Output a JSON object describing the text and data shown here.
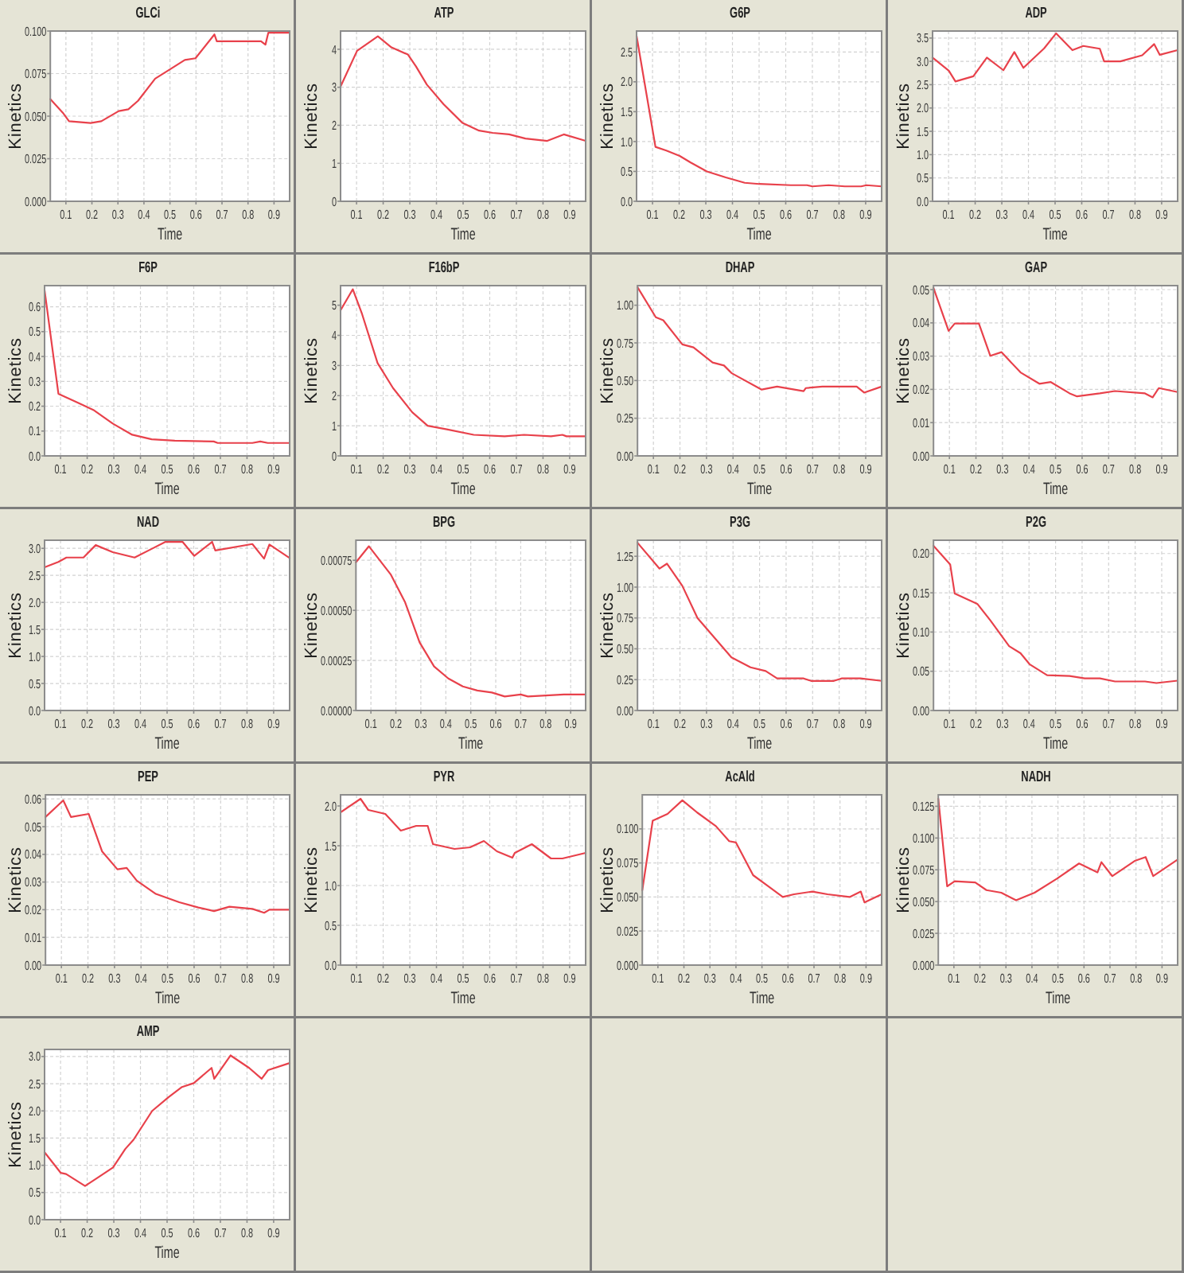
{
  "chart_data": [
    {
      "type": "line",
      "title": "GLCi",
      "xlabel": "Time",
      "ylabel": "Kinetics",
      "x": [
        0.04,
        0.088,
        0.112,
        0.195,
        0.236,
        0.303,
        0.34,
        0.377,
        0.443,
        0.505,
        0.557,
        0.598,
        0.671,
        0.68,
        0.733,
        0.85,
        0.867,
        0.878,
        0.96
      ],
      "series": [
        {
          "color": "#e8414b",
          "values": [
            0.06,
            0.052,
            0.047,
            0.046,
            0.047,
            0.053,
            0.054,
            0.059,
            0.072,
            0.078,
            0.083,
            0.084,
            0.098,
            0.094,
            0.094,
            0.094,
            0.092,
            0.099,
            0.099
          ]
        }
      ],
      "xlim": [
        0.04,
        0.96
      ],
      "xticks": [
        0.1,
        0.2,
        0.3,
        0.4,
        0.5,
        0.6,
        0.7,
        0.8,
        0.9
      ],
      "ylim": [
        0,
        0.1
      ],
      "yticks": [
        {
          "value": 0,
          "label": "0.000"
        },
        0.025,
        {
          "value": 0.05,
          "label": "0.050"
        },
        0.075,
        {
          "value": 0.1,
          "label": "0.100"
        }
      ],
      "grid": true
    },
    {
      "type": "line",
      "title": "ATP",
      "xlabel": "Time",
      "ylabel": "Kinetics",
      "x": [
        0.04,
        0.102,
        0.18,
        0.231,
        0.293,
        0.323,
        0.364,
        0.426,
        0.498,
        0.56,
        0.611,
        0.673,
        0.734,
        0.816,
        0.878,
        0.96
      ],
      "series": [
        {
          "color": "#e8414b",
          "values": [
            3.02,
            3.96,
            4.34,
            4.05,
            3.86,
            3.55,
            3.07,
            2.56,
            2.06,
            1.86,
            1.8,
            1.76,
            1.65,
            1.59,
            1.76,
            1.59
          ]
        }
      ],
      "xlim": [
        0.04,
        0.96
      ],
      "xticks": [
        0.1,
        0.2,
        0.3,
        0.4,
        0.5,
        0.6,
        0.7,
        0.8,
        0.9
      ],
      "ylim": [
        0,
        4.48
      ],
      "yticks": [
        0,
        1,
        2,
        3,
        4
      ],
      "grid": true
    },
    {
      "type": "line",
      "title": "G6P",
      "xlabel": "Time",
      "ylabel": "Kinetics",
      "x": [
        0.04,
        0.111,
        0.152,
        0.202,
        0.243,
        0.304,
        0.375,
        0.446,
        0.5,
        0.619,
        0.68,
        0.7,
        0.761,
        0.822,
        0.883,
        0.903,
        0.96
      ],
      "series": [
        {
          "color": "#e8414b",
          "values": [
            2.77,
            0.91,
            0.85,
            0.76,
            0.65,
            0.5,
            0.4,
            0.31,
            0.29,
            0.27,
            0.27,
            0.25,
            0.27,
            0.25,
            0.25,
            0.27,
            0.25
          ]
        }
      ],
      "xlim": [
        0.04,
        0.96
      ],
      "xticks": [
        0.1,
        0.2,
        0.3,
        0.4,
        0.5,
        0.6,
        0.7,
        0.8,
        0.9
      ],
      "ylim": [
        0,
        2.85
      ],
      "yticks": [
        {
          "value": 0,
          "label": "0.0"
        },
        0.5,
        {
          "value": 1,
          "label": "1.0"
        },
        1.5,
        {
          "value": 2,
          "label": "2.0"
        },
        2.5
      ],
      "grid": true
    },
    {
      "type": "line",
      "title": "ADP",
      "xlabel": "Time",
      "ylabel": "Kinetics",
      "x": [
        0.04,
        0.101,
        0.126,
        0.193,
        0.244,
        0.306,
        0.347,
        0.381,
        0.459,
        0.504,
        0.565,
        0.606,
        0.668,
        0.684,
        0.745,
        0.827,
        0.872,
        0.893,
        0.96
      ],
      "series": [
        {
          "color": "#e8414b",
          "values": [
            3.08,
            2.8,
            2.57,
            2.68,
            3.08,
            2.81,
            3.2,
            2.86,
            3.28,
            3.6,
            3.24,
            3.33,
            3.27,
            3.0,
            3.0,
            3.13,
            3.37,
            3.14,
            3.24
          ]
        }
      ],
      "xlim": [
        0.04,
        0.96
      ],
      "xticks": [
        0.1,
        0.2,
        0.3,
        0.4,
        0.5,
        0.6,
        0.7,
        0.8,
        0.9
      ],
      "ylim": [
        0,
        3.65
      ],
      "yticks": [
        {
          "value": 0,
          "label": "0.0"
        },
        0.5,
        {
          "value": 1,
          "label": "1.0"
        },
        1.5,
        {
          "value": 2,
          "label": "2.0"
        },
        2.5,
        {
          "value": 3,
          "label": "3.0"
        },
        3.5
      ],
      "grid": true
    },
    {
      "type": "line",
      "title": "F6P",
      "xlabel": "Time",
      "ylabel": "Kinetics",
      "x": [
        0.04,
        0.092,
        0.151,
        0.223,
        0.296,
        0.369,
        0.442,
        0.529,
        0.675,
        0.69,
        0.82,
        0.85,
        0.878,
        0.96
      ],
      "series": [
        {
          "color": "#e8414b",
          "values": [
            0.667,
            0.25,
            0.221,
            0.185,
            0.13,
            0.085,
            0.067,
            0.061,
            0.058,
            0.052,
            0.052,
            0.058,
            0.052,
            0.052
          ]
        }
      ],
      "xlim": [
        0.04,
        0.96
      ],
      "xticks": [
        0.1,
        0.2,
        0.3,
        0.4,
        0.5,
        0.6,
        0.7,
        0.8,
        0.9
      ],
      "ylim": [
        0,
        0.685
      ],
      "yticks": [
        {
          "value": 0,
          "label": "0.0"
        },
        0.1,
        0.2,
        0.3,
        0.4,
        0.5,
        0.6
      ],
      "grid": true
    },
    {
      "type": "line",
      "title": "F16bP",
      "xlabel": "Time",
      "ylabel": "Kinetics",
      "x": [
        0.04,
        0.086,
        0.121,
        0.179,
        0.237,
        0.309,
        0.367,
        0.439,
        0.54,
        0.656,
        0.729,
        0.83,
        0.873,
        0.888,
        0.96
      ],
      "series": [
        {
          "color": "#e8414b",
          "values": [
            4.83,
            5.53,
            4.7,
            3.08,
            2.25,
            1.45,
            1.0,
            0.88,
            0.7,
            0.65,
            0.7,
            0.65,
            0.7,
            0.65,
            0.65
          ]
        }
      ],
      "xlim": [
        0.04,
        0.96
      ],
      "xticks": [
        0.1,
        0.2,
        0.3,
        0.4,
        0.5,
        0.6,
        0.7,
        0.8,
        0.9
      ],
      "ylim": [
        0,
        5.65
      ],
      "yticks": [
        0,
        1,
        2,
        3,
        4,
        5
      ],
      "grid": true
    },
    {
      "type": "line",
      "title": "DHAP",
      "xlabel": "Time",
      "ylabel": "Kinetics",
      "x": [
        0.04,
        0.109,
        0.137,
        0.209,
        0.251,
        0.323,
        0.366,
        0.394,
        0.508,
        0.566,
        0.666,
        0.674,
        0.737,
        0.866,
        0.894,
        0.96
      ],
      "series": [
        {
          "color": "#e8414b",
          "values": [
            1.12,
            0.92,
            0.9,
            0.74,
            0.72,
            0.62,
            0.6,
            0.55,
            0.44,
            0.46,
            0.43,
            0.45,
            0.46,
            0.46,
            0.42,
            0.46
          ]
        }
      ],
      "xlim": [
        0.04,
        0.96
      ],
      "xticks": [
        0.1,
        0.2,
        0.3,
        0.4,
        0.5,
        0.6,
        0.7,
        0.8,
        0.9
      ],
      "ylim": [
        0,
        1.13
      ],
      "yticks": [
        {
          "value": 0,
          "label": "0.00"
        },
        0.25,
        {
          "value": 0.5,
          "label": "0.50"
        },
        0.75,
        {
          "value": 1,
          "label": "1.00"
        }
      ],
      "grid": true
    },
    {
      "type": "line",
      "title": "GAP",
      "xlabel": "Time",
      "ylabel": "Kinetics",
      "x": [
        0.04,
        0.097,
        0.12,
        0.211,
        0.254,
        0.296,
        0.368,
        0.439,
        0.482,
        0.553,
        0.581,
        0.667,
        0.724,
        0.837,
        0.866,
        0.889,
        0.96
      ],
      "series": [
        {
          "color": "#e8414b",
          "values": [
            0.0505,
            0.0376,
            0.0398,
            0.0398,
            0.0301,
            0.0312,
            0.0251,
            0.0217,
            0.0222,
            0.0188,
            0.0179,
            0.0188,
            0.0195,
            0.0188,
            0.0176,
            0.0204,
            0.0192
          ]
        }
      ],
      "xlim": [
        0.04,
        0.96
      ],
      "xticks": [
        0.1,
        0.2,
        0.3,
        0.4,
        0.5,
        0.6,
        0.7,
        0.8,
        0.9
      ],
      "ylim": [
        0,
        0.0512
      ],
      "yticks": [
        {
          "value": 0,
          "label": "0.00"
        },
        0.01,
        0.02,
        0.03,
        0.04,
        0.05
      ],
      "grid": true
    },
    {
      "type": "line",
      "title": "NAD",
      "xlabel": "Time",
      "ylabel": "Kinetics",
      "x": [
        0.04,
        0.092,
        0.122,
        0.186,
        0.232,
        0.296,
        0.378,
        0.442,
        0.494,
        0.558,
        0.602,
        0.669,
        0.681,
        0.82,
        0.864,
        0.884,
        0.96
      ],
      "series": [
        {
          "color": "#e8414b",
          "values": [
            2.65,
            2.75,
            2.83,
            2.83,
            3.06,
            2.93,
            2.83,
            2.99,
            3.12,
            3.12,
            2.86,
            3.12,
            2.96,
            3.08,
            2.81,
            3.07,
            2.82
          ]
        }
      ],
      "xlim": [
        0.04,
        0.96
      ],
      "xticks": [
        0.1,
        0.2,
        0.3,
        0.4,
        0.5,
        0.6,
        0.7,
        0.8,
        0.9
      ],
      "ylim": [
        0,
        3.15
      ],
      "yticks": [
        {
          "value": 0,
          "label": "0.0"
        },
        0.5,
        {
          "value": 1,
          "label": "1.0"
        },
        1.5,
        {
          "value": 2,
          "label": "2.0"
        },
        2.5,
        {
          "value": 3,
          "label": "3.0"
        }
      ],
      "grid": true
    },
    {
      "type": "line",
      "title": "BPG",
      "xlabel": "Time",
      "ylabel": "Kinetics",
      "x": [
        0.04,
        0.092,
        0.179,
        0.237,
        0.295,
        0.353,
        0.41,
        0.468,
        0.526,
        0.584,
        0.636,
        0.7,
        0.729,
        0.873,
        0.96
      ],
      "series": [
        {
          "color": "#e8414b",
          "values": [
            0.00074,
            0.00082,
            0.00068,
            0.00054,
            0.00034,
            0.00022,
            0.00016,
            0.00012,
            0.0001,
            9e-05,
            7e-05,
            8e-05,
            7e-05,
            8e-05,
            8e-05
          ]
        }
      ],
      "xlim": [
        0.04,
        0.96
      ],
      "xticks": [
        0.1,
        0.2,
        0.3,
        0.4,
        0.5,
        0.6,
        0.7,
        0.8,
        0.9
      ],
      "ylim": [
        0,
        0.00085
      ],
      "yticks": [
        {
          "value": 0,
          "label": "0.00000"
        },
        0.00025,
        {
          "value": 0.0005,
          "label": "0.00050"
        },
        0.00075
      ],
      "grid": true
    },
    {
      "type": "line",
      "title": "P3G",
      "xlabel": "Time",
      "ylabel": "Kinetics",
      "x": [
        0.04,
        0.123,
        0.151,
        0.209,
        0.266,
        0.394,
        0.466,
        0.523,
        0.566,
        0.666,
        0.694,
        0.78,
        0.809,
        0.88,
        0.96
      ],
      "series": [
        {
          "color": "#e8414b",
          "values": [
            1.36,
            1.15,
            1.19,
            1.01,
            0.75,
            0.43,
            0.35,
            0.32,
            0.26,
            0.26,
            0.24,
            0.24,
            0.26,
            0.26,
            0.24
          ]
        }
      ],
      "xlim": [
        0.04,
        0.96
      ],
      "xticks": [
        0.1,
        0.2,
        0.3,
        0.4,
        0.5,
        0.6,
        0.7,
        0.8,
        0.9
      ],
      "ylim": [
        0,
        1.38
      ],
      "yticks": [
        {
          "value": 0,
          "label": "0.00"
        },
        0.25,
        {
          "value": 0.5,
          "label": "0.50"
        },
        0.75,
        {
          "value": 1,
          "label": "1.00"
        },
        1.25
      ],
      "grid": true
    },
    {
      "type": "line",
      "title": "P2G",
      "xlabel": "Time",
      "ylabel": "Kinetics",
      "x": [
        0.04,
        0.103,
        0.12,
        0.205,
        0.254,
        0.325,
        0.368,
        0.402,
        0.468,
        0.553,
        0.61,
        0.667,
        0.724,
        0.837,
        0.88,
        0.96
      ],
      "series": [
        {
          "color": "#e8414b",
          "values": [
            0.21,
            0.186,
            0.149,
            0.136,
            0.115,
            0.082,
            0.073,
            0.059,
            0.045,
            0.044,
            0.041,
            0.041,
            0.037,
            0.037,
            0.035,
            0.038
          ]
        }
      ],
      "xlim": [
        0.04,
        0.96
      ],
      "xticks": [
        0.1,
        0.2,
        0.3,
        0.4,
        0.5,
        0.6,
        0.7,
        0.8,
        0.9
      ],
      "ylim": [
        0,
        0.217
      ],
      "yticks": [
        {
          "value": 0,
          "label": "0.00"
        },
        0.05,
        {
          "value": 0.1,
          "label": "0.10"
        },
        0.15,
        {
          "value": 0.2,
          "label": "0.20"
        }
      ],
      "grid": true
    },
    {
      "type": "line",
      "title": "PEP",
      "xlabel": "Time",
      "ylabel": "Kinetics",
      "x": [
        0.04,
        0.107,
        0.136,
        0.203,
        0.253,
        0.311,
        0.346,
        0.384,
        0.456,
        0.544,
        0.616,
        0.675,
        0.733,
        0.82,
        0.864,
        0.884,
        0.96
      ],
      "series": [
        {
          "color": "#e8414b",
          "values": [
            0.0535,
            0.0595,
            0.0535,
            0.0546,
            0.0411,
            0.0346,
            0.0351,
            0.0305,
            0.0257,
            0.0227,
            0.0208,
            0.0195,
            0.0211,
            0.0203,
            0.0189,
            0.02,
            0.02
          ]
        }
      ],
      "xlim": [
        0.04,
        0.96
      ],
      "xticks": [
        0.1,
        0.2,
        0.3,
        0.4,
        0.5,
        0.6,
        0.7,
        0.8,
        0.9
      ],
      "ylim": [
        0,
        0.0615
      ],
      "yticks": [
        {
          "value": 0,
          "label": "0.00"
        },
        0.01,
        0.02,
        0.03,
        0.04,
        0.05,
        0.06
      ],
      "grid": true
    },
    {
      "type": "line",
      "title": "PYR",
      "xlabel": "Time",
      "ylabel": "Kinetics",
      "x": [
        0.04,
        0.115,
        0.144,
        0.208,
        0.266,
        0.324,
        0.367,
        0.387,
        0.468,
        0.526,
        0.578,
        0.627,
        0.685,
        0.694,
        0.758,
        0.83,
        0.873,
        0.96
      ],
      "series": [
        {
          "color": "#e8414b",
          "values": [
            1.92,
            2.09,
            1.95,
            1.9,
            1.69,
            1.75,
            1.75,
            1.52,
            1.46,
            1.48,
            1.56,
            1.43,
            1.35,
            1.41,
            1.52,
            1.34,
            1.34,
            1.41
          ]
        }
      ],
      "xlim": [
        0.04,
        0.96
      ],
      "xticks": [
        0.1,
        0.2,
        0.3,
        0.4,
        0.5,
        0.6,
        0.7,
        0.8,
        0.9
      ],
      "ylim": [
        0,
        2.14
      ],
      "yticks": [
        {
          "value": 0,
          "label": "0.0"
        },
        0.5,
        {
          "value": 1,
          "label": "1.0"
        },
        1.5,
        {
          "value": 2,
          "label": "2.0"
        }
      ],
      "grid": true
    },
    {
      "type": "line",
      "title": "AcAld",
      "xlabel": "Time",
      "ylabel": "Kinetics",
      "x": [
        0.04,
        0.08,
        0.137,
        0.194,
        0.251,
        0.323,
        0.374,
        0.4,
        0.466,
        0.523,
        0.58,
        0.623,
        0.694,
        0.752,
        0.837,
        0.88,
        0.894,
        0.96
      ],
      "series": [
        {
          "color": "#e8414b",
          "values": [
            0.055,
            0.106,
            0.111,
            0.121,
            0.112,
            0.102,
            0.091,
            0.09,
            0.066,
            0.058,
            0.05,
            0.052,
            0.054,
            0.052,
            0.05,
            0.054,
            0.046,
            0.052
          ]
        }
      ],
      "xlim": [
        0.04,
        0.96
      ],
      "xticks": [
        0.1,
        0.2,
        0.3,
        0.4,
        0.5,
        0.6,
        0.7,
        0.8,
        0.9
      ],
      "ylim": [
        0,
        0.125
      ],
      "yticks": [
        {
          "value": 0,
          "label": "0.000"
        },
        0.025,
        {
          "value": 0.05,
          "label": "0.050"
        },
        0.075,
        {
          "value": 0.1,
          "label": "0.100"
        }
      ],
      "grid": true
    },
    {
      "type": "line",
      "title": "NADH",
      "xlabel": "Time",
      "ylabel": "Kinetics",
      "x": [
        0.04,
        0.074,
        0.103,
        0.182,
        0.225,
        0.282,
        0.339,
        0.41,
        0.496,
        0.581,
        0.652,
        0.667,
        0.709,
        0.795,
        0.837,
        0.866,
        0.96
      ],
      "series": [
        {
          "color": "#e8414b",
          "values": [
            0.131,
            0.062,
            0.066,
            0.065,
            0.059,
            0.057,
            0.051,
            0.057,
            0.068,
            0.08,
            0.073,
            0.081,
            0.07,
            0.082,
            0.085,
            0.07,
            0.083
          ]
        }
      ],
      "xlim": [
        0.04,
        0.96
      ],
      "xticks": [
        0.1,
        0.2,
        0.3,
        0.4,
        0.5,
        0.6,
        0.7,
        0.8,
        0.9
      ],
      "ylim": [
        0,
        0.134
      ],
      "yticks": [
        {
          "value": 0,
          "label": "0.000"
        },
        0.025,
        {
          "value": 0.05,
          "label": "0.050"
        },
        0.075,
        {
          "value": 0.1,
          "label": "0.100"
        },
        0.125
      ],
      "grid": true
    },
    {
      "type": "line",
      "title": "AMP",
      "xlabel": "Time",
      "ylabel": "Kinetics",
      "x": [
        0.04,
        0.101,
        0.121,
        0.192,
        0.242,
        0.297,
        0.343,
        0.374,
        0.444,
        0.505,
        0.556,
        0.6,
        0.667,
        0.677,
        0.738,
        0.808,
        0.855,
        0.879,
        0.96
      ],
      "series": [
        {
          "color": "#e8414b",
          "values": [
            1.24,
            0.86,
            0.84,
            0.62,
            0.78,
            0.96,
            1.3,
            1.47,
            2.0,
            2.25,
            2.44,
            2.51,
            2.79,
            2.59,
            3.02,
            2.79,
            2.59,
            2.75,
            2.88
          ]
        }
      ],
      "xlim": [
        0.04,
        0.96
      ],
      "xticks": [
        0.1,
        0.2,
        0.3,
        0.4,
        0.5,
        0.6,
        0.7,
        0.8,
        0.9
      ],
      "ylim": [
        0,
        3.13
      ],
      "yticks": [
        {
          "value": 0,
          "label": "0.0"
        },
        0.5,
        {
          "value": 1,
          "label": "1.0"
        },
        1.5,
        {
          "value": 2,
          "label": "2.0"
        },
        2.5,
        {
          "value": 3,
          "label": "3.0"
        }
      ],
      "grid": true
    }
  ]
}
